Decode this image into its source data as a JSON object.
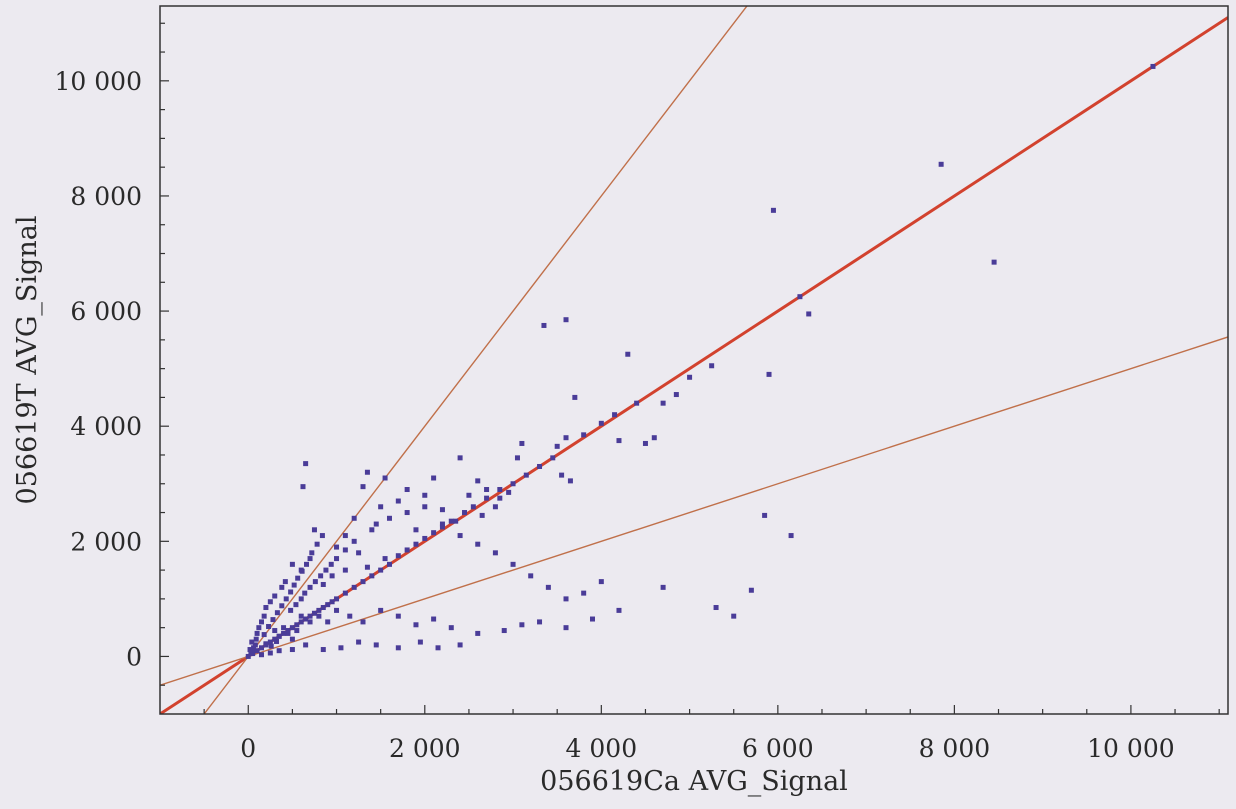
{
  "chart_data": {
    "type": "scatter",
    "title": "",
    "xlabel": "056619Ca AVG_Signal",
    "ylabel": "056619T AVG_Signal",
    "xlim": [
      -1000,
      11100
    ],
    "ylim": [
      -1000,
      11300
    ],
    "xticks": [
      0,
      2000,
      4000,
      6000,
      8000,
      10000
    ],
    "xtick_labels": [
      "0",
      "2 000",
      "4 000",
      "6 000",
      "8 000",
      "10 000"
    ],
    "yticks": [
      0,
      2000,
      4000,
      6000,
      8000,
      10000
    ],
    "ytick_labels": [
      "0",
      "2 000",
      "4 000",
      "6 000",
      "8 000",
      "10 000"
    ],
    "grid": false,
    "marker_color": "#4a3c98",
    "reference_lines": [
      {
        "slope": 1,
        "color": "#d2422e"
      },
      {
        "slope": 2,
        "color": "#c0704a"
      },
      {
        "slope": 0.5,
        "color": "#c0704a"
      }
    ],
    "points": [
      [
        10250,
        10250
      ],
      [
        8450,
        6850
      ],
      [
        7850,
        8550
      ],
      [
        5950,
        7750
      ],
      [
        6350,
        5950
      ],
      [
        6250,
        6250
      ],
      [
        5900,
        4900
      ],
      [
        3600,
        5850
      ],
      [
        3350,
        5750
      ],
      [
        4300,
        5250
      ],
      [
        5000,
        4850
      ],
      [
        5250,
        5050
      ],
      [
        4850,
        4550
      ],
      [
        4700,
        4400
      ],
      [
        4600,
        3800
      ],
      [
        4500,
        3700
      ],
      [
        4200,
        3750
      ],
      [
        3700,
        4500
      ],
      [
        3600,
        3800
      ],
      [
        3500,
        3650
      ],
      [
        3650,
        3050
      ],
      [
        3550,
        3150
      ],
      [
        3100,
        3700
      ],
      [
        3050,
        3450
      ],
      [
        2950,
        2850
      ],
      [
        2850,
        2750
      ],
      [
        2700,
        2900
      ],
      [
        2600,
        3050
      ],
      [
        2800,
        2600
      ],
      [
        2650,
        2450
      ],
      [
        2500,
        2800
      ],
      [
        2400,
        3450
      ],
      [
        2350,
        2350
      ],
      [
        2200,
        2550
      ],
      [
        2100,
        3100
      ],
      [
        2000,
        2800
      ],
      [
        1900,
        2200
      ],
      [
        1800,
        2900
      ],
      [
        1700,
        2700
      ],
      [
        1550,
        3100
      ],
      [
        1500,
        2600
      ],
      [
        1450,
        2300
      ],
      [
        1350,
        3200
      ],
      [
        1300,
        2950
      ],
      [
        1200,
        2400
      ],
      [
        1100,
        2100
      ],
      [
        1000,
        1900
      ],
      [
        1550,
        1700
      ],
      [
        1350,
        1550
      ],
      [
        1250,
        1800
      ],
      [
        1100,
        1500
      ],
      [
        950,
        1400
      ],
      [
        850,
        1250
      ],
      [
        750,
        2200
      ],
      [
        650,
        3350
      ],
      [
        620,
        2950
      ],
      [
        700,
        1700
      ],
      [
        600,
        1500
      ],
      [
        500,
        1600
      ],
      [
        420,
        1300
      ],
      [
        380,
        1200
      ],
      [
        300,
        1050
      ],
      [
        250,
        950
      ],
      [
        200,
        850
      ],
      [
        180,
        700
      ],
      [
        150,
        600
      ],
      [
        120,
        500
      ],
      [
        100,
        400
      ],
      [
        90,
        300
      ],
      [
        80,
        200
      ],
      [
        60,
        150
      ],
      [
        50,
        80
      ],
      [
        40,
        250
      ],
      [
        30,
        50
      ],
      [
        20,
        120
      ],
      [
        300,
        450
      ],
      [
        350,
        350
      ],
      [
        400,
        500
      ],
      [
        450,
        400
      ],
      [
        500,
        300
      ],
      [
        550,
        450
      ],
      [
        600,
        700
      ],
      [
        700,
        600
      ],
      [
        800,
        700
      ],
      [
        900,
        600
      ],
      [
        1000,
        800
      ],
      [
        1150,
        700
      ],
      [
        1300,
        600
      ],
      [
        1500,
        800
      ],
      [
        1700,
        700
      ],
      [
        1900,
        550
      ],
      [
        2100,
        650
      ],
      [
        2300,
        500
      ],
      [
        2600,
        400
      ],
      [
        2900,
        450
      ],
      [
        3100,
        550
      ],
      [
        3300,
        600
      ],
      [
        3600,
        500
      ],
      [
        3900,
        650
      ],
      [
        4200,
        800
      ],
      [
        5300,
        850
      ],
      [
        5500,
        700
      ],
      [
        5700,
        1150
      ],
      [
        4700,
        1200
      ],
      [
        6150,
        2100
      ],
      [
        5850,
        2450
      ],
      [
        2400,
        200
      ],
      [
        2150,
        150
      ],
      [
        1950,
        250
      ],
      [
        1700,
        150
      ],
      [
        1450,
        200
      ],
      [
        1250,
        250
      ],
      [
        1050,
        150
      ],
      [
        850,
        120
      ],
      [
        650,
        200
      ],
      [
        500,
        120
      ],
      [
        350,
        100
      ],
      [
        250,
        60
      ],
      [
        150,
        30
      ],
      [
        200,
        220
      ],
      [
        260,
        180
      ],
      [
        320,
        260
      ],
      [
        180,
        380
      ],
      [
        230,
        520
      ],
      [
        280,
        640
      ],
      [
        330,
        760
      ],
      [
        380,
        880
      ],
      [
        430,
        1000
      ],
      [
        480,
        1120
      ],
      [
        520,
        1240
      ],
      [
        560,
        1360
      ],
      [
        610,
        1480
      ],
      [
        660,
        1600
      ],
      [
        720,
        1800
      ],
      [
        780,
        1950
      ],
      [
        840,
        2100
      ],
      [
        480,
        800
      ],
      [
        540,
        900
      ],
      [
        600,
        1000
      ],
      [
        640,
        1100
      ],
      [
        700,
        1200
      ],
      [
        760,
        1300
      ],
      [
        820,
        1400
      ],
      [
        880,
        1500
      ],
      [
        940,
        1600
      ],
      [
        1000,
        1700
      ],
      [
        1100,
        1850
      ],
      [
        1200,
        2000
      ],
      [
        1400,
        2200
      ],
      [
        1600,
        2400
      ],
      [
        1800,
        2500
      ],
      [
        2000,
        2600
      ],
      [
        2200,
        2300
      ],
      [
        2400,
        2100
      ],
      [
        2600,
        1950
      ],
      [
        2800,
        1800
      ],
      [
        3000,
        1600
      ],
      [
        3200,
        1400
      ],
      [
        3400,
        1200
      ],
      [
        3600,
        1000
      ],
      [
        3800,
        1100
      ],
      [
        4000,
        1300
      ],
      [
        1000,
        1000
      ],
      [
        1100,
        1100
      ],
      [
        1200,
        1200
      ],
      [
        1300,
        1300
      ],
      [
        1400,
        1400
      ],
      [
        1500,
        1500
      ],
      [
        1600,
        1600
      ],
      [
        1700,
        1750
      ],
      [
        1800,
        1850
      ],
      [
        1900,
        1950
      ],
      [
        2000,
        2050
      ],
      [
        2100,
        2150
      ],
      [
        2200,
        2250
      ],
      [
        2300,
        2350
      ],
      [
        2450,
        2500
      ],
      [
        2550,
        2600
      ],
      [
        2700,
        2750
      ],
      [
        2850,
        2900
      ],
      [
        3000,
        3000
      ],
      [
        3150,
        3150
      ],
      [
        3300,
        3300
      ],
      [
        3450,
        3450
      ],
      [
        3800,
        3850
      ],
      [
        4000,
        4050
      ],
      [
        4150,
        4200
      ],
      [
        4400,
        4400
      ],
      [
        200,
        200
      ],
      [
        250,
        250
      ],
      [
        300,
        300
      ],
      [
        350,
        350
      ],
      [
        400,
        400
      ],
      [
        450,
        450
      ],
      [
        500,
        500
      ],
      [
        550,
        550
      ],
      [
        600,
        600
      ],
      [
        650,
        650
      ],
      [
        700,
        700
      ],
      [
        750,
        750
      ],
      [
        800,
        800
      ],
      [
        850,
        850
      ],
      [
        900,
        900
      ],
      [
        950,
        950
      ],
      [
        100,
        100
      ],
      [
        150,
        150
      ],
      [
        50,
        50
      ],
      [
        0,
        0
      ]
    ]
  }
}
